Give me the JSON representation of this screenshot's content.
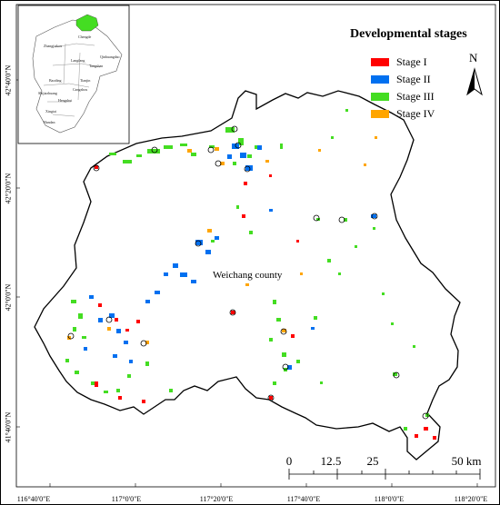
{
  "latitude_labels": [
    "42°40'0\"N",
    "42°20'0\"N",
    "42°0'0\"N",
    "41°40'0\"N"
  ],
  "longitude_labels": [
    "116°40'0\"E",
    "117°0'0\"E",
    "117°20'0\"E",
    "117°40'0\"E",
    "118°0'0\"E",
    "118°20'0\"E"
  ],
  "legend": {
    "title": "Developmental stages",
    "items": [
      {
        "label": "Stage I",
        "color": "#ff0000"
      },
      {
        "label": "Stage II",
        "color": "#0070f0"
      },
      {
        "label": "Stage III",
        "color": "#44dd22"
      },
      {
        "label": "Stage IV",
        "color": "#ffa500"
      }
    ]
  },
  "north_arrow": {
    "label": "N",
    "icon": "north-arrow-icon"
  },
  "county_label": "Weichang county",
  "scale_bar": {
    "labels": [
      "0",
      "12.5",
      "25",
      "50 km"
    ]
  },
  "inset": {
    "highlight_color": "#44dd22",
    "labels": [
      "Chengde",
      "Zhangjiakou",
      "Qinhuangdao",
      "Tangshan",
      "Langfang",
      "Baoding",
      "Tianjin",
      "Cangzhou",
      "Shijiazhuang",
      "Hengshui",
      "Xingtai",
      "Handan"
    ]
  }
}
